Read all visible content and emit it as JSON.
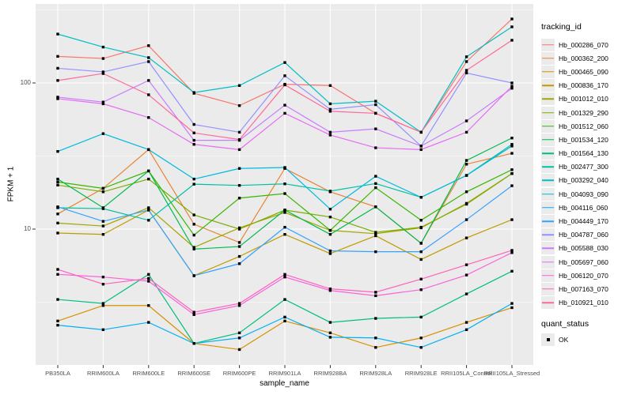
{
  "figure": {
    "background": "#FFFFFF"
  },
  "chart_data": {
    "type": "line",
    "title": "",
    "xlabel": "sample_name",
    "ylabel": "FPKM + 1",
    "y_scale": "log10",
    "y_axis_ticks": [
      "100",
      "10"
    ],
    "y_tick_values": [
      100,
      10
    ],
    "y_minor_gridline_values": [
      316.23,
      31.62,
      3.162
    ],
    "ylim": [
      1.3,
      330
    ],
    "grid": true,
    "legend_position": "right",
    "categories": [
      "PB350LA",
      "RRIM600LA",
      "RRIM600LE",
      "RRIM600SE",
      "RRIM600PE",
      "RRIM901LA",
      "RRIM928BA",
      "RRIM928LA",
      "RRIM928LE",
      "RRII105LA_Control",
      "RRII105LA_Stressed"
    ],
    "series": [
      {
        "name": "Hb_000286_070",
        "color": "#F8766D",
        "values": [
          152,
          147,
          180,
          85,
          70,
          98,
          96,
          62,
          46,
          140,
          274
        ]
      },
      {
        "name": "Hb_000362_200",
        "color": "#EA8331",
        "values": [
          12.7,
          19,
          35,
          10.8,
          8.1,
          26,
          18,
          14.2,
          8.0,
          27.8,
          33
        ]
      },
      {
        "name": "Hb_000465_090",
        "color": "#D89000",
        "values": [
          2.35,
          3.0,
          3.0,
          1.65,
          1.5,
          2.35,
          1.95,
          1.55,
          1.8,
          2.3,
          2.9
        ]
      },
      {
        "name": "Hb_000836_170",
        "color": "#C09B00",
        "values": [
          9.4,
          9.2,
          13.5,
          4.8,
          6.5,
          9.2,
          6.8,
          9.0,
          6.2,
          8.7,
          11.6
        ]
      },
      {
        "name": "Hb_001012_010",
        "color": "#A3A500",
        "values": [
          11,
          10.5,
          14,
          7.5,
          10.2,
          13,
          9.8,
          9.3,
          10.2,
          15,
          24
        ]
      },
      {
        "name": "Hb_001329_290",
        "color": "#7CAE00",
        "values": [
          20,
          18,
          22,
          12.5,
          10,
          13.5,
          12.1,
          9.5,
          10.3,
          14.8,
          24
        ]
      },
      {
        "name": "Hb_001512_060",
        "color": "#39B600",
        "values": [
          21,
          19,
          25,
          9.1,
          16.3,
          17.5,
          9.8,
          19.2,
          11.5,
          18,
          25.5
        ]
      },
      {
        "name": "Hb_001534_120",
        "color": "#00BB4E",
        "values": [
          22,
          14,
          25,
          7.3,
          7.6,
          13.5,
          9.2,
          14.2,
          8.0,
          29.5,
          42
        ]
      },
      {
        "name": "Hb_001564_130",
        "color": "#00BF7D",
        "values": [
          3.3,
          3.1,
          4.9,
          1.65,
          1.95,
          3.3,
          2.3,
          2.45,
          2.5,
          3.6,
          5.15
        ]
      },
      {
        "name": "Hb_002477_300",
        "color": "#00C1A3",
        "values": [
          14,
          13.8,
          11.5,
          20.3,
          19.9,
          20.4,
          18.2,
          20.5,
          16.5,
          23.3,
          38
        ]
      },
      {
        "name": "Hb_003292_040",
        "color": "#00BFC4",
        "values": [
          216,
          176,
          149,
          86,
          96,
          138,
          72,
          75,
          46,
          151,
          242
        ]
      },
      {
        "name": "Hb_004093_090",
        "color": "#00BAE0",
        "values": [
          34,
          45,
          35,
          22,
          26,
          26.4,
          13.7,
          23,
          16.5,
          23.3,
          37
        ]
      },
      {
        "name": "Hb_004116_060",
        "color": "#00B0F6",
        "values": [
          2.2,
          2.05,
          2.3,
          1.65,
          1.8,
          2.5,
          1.82,
          1.8,
          1.55,
          2.05,
          3.1
        ]
      },
      {
        "name": "Hb_004449_170",
        "color": "#35A2FF",
        "values": [
          14.2,
          11.3,
          13.5,
          4.8,
          5.8,
          10.3,
          7.1,
          7.0,
          7.0,
          11.6,
          19.8
        ]
      },
      {
        "name": "Hb_004787_060",
        "color": "#9590FF",
        "values": [
          126,
          119,
          140,
          52,
          46,
          112,
          66,
          71,
          37,
          117,
          100
        ]
      },
      {
        "name": "Hb_005588_030",
        "color": "#C77CFF",
        "values": [
          80,
          74,
          104,
          40.5,
          40.5,
          70.5,
          46,
          48.5,
          37,
          55,
          92
        ]
      },
      {
        "name": "Hb_005697_060",
        "color": "#E76BF3",
        "values": [
          78,
          72,
          58,
          38,
          35,
          62,
          44,
          36,
          35,
          46,
          95
        ]
      },
      {
        "name": "Hb_006120_070",
        "color": "#FA62DB",
        "values": [
          4.9,
          4.7,
          4.4,
          2.6,
          3.0,
          4.7,
          3.8,
          3.5,
          3.85,
          4.85,
          6.9
        ]
      },
      {
        "name": "Hb_007163_070",
        "color": "#FF62BC",
        "values": [
          5.3,
          4.2,
          4.6,
          2.7,
          3.1,
          4.9,
          3.9,
          3.7,
          4.55,
          5.7,
          7.15
        ]
      },
      {
        "name": "Hb_010921_010",
        "color": "#FF6A98",
        "values": [
          104,
          116,
          83,
          45.5,
          41,
          97,
          64,
          62,
          46,
          122,
          196
        ]
      }
    ],
    "marker": {
      "shape": "filled-square",
      "color": "#000000",
      "meaning": "quant_status OK"
    }
  },
  "legend": {
    "tracking_title": "tracking_id",
    "quant_title": "quant_status",
    "quant_items": [
      {
        "label": "OK",
        "marker": "black-square"
      }
    ]
  },
  "colors": {
    "panel_bg": "#EBEBEB",
    "gridline": "#FFFFFF",
    "axis_text": "#4D4D4D",
    "tick_mark": "#333333",
    "legend_key_bg": "#EBEBEB"
  }
}
